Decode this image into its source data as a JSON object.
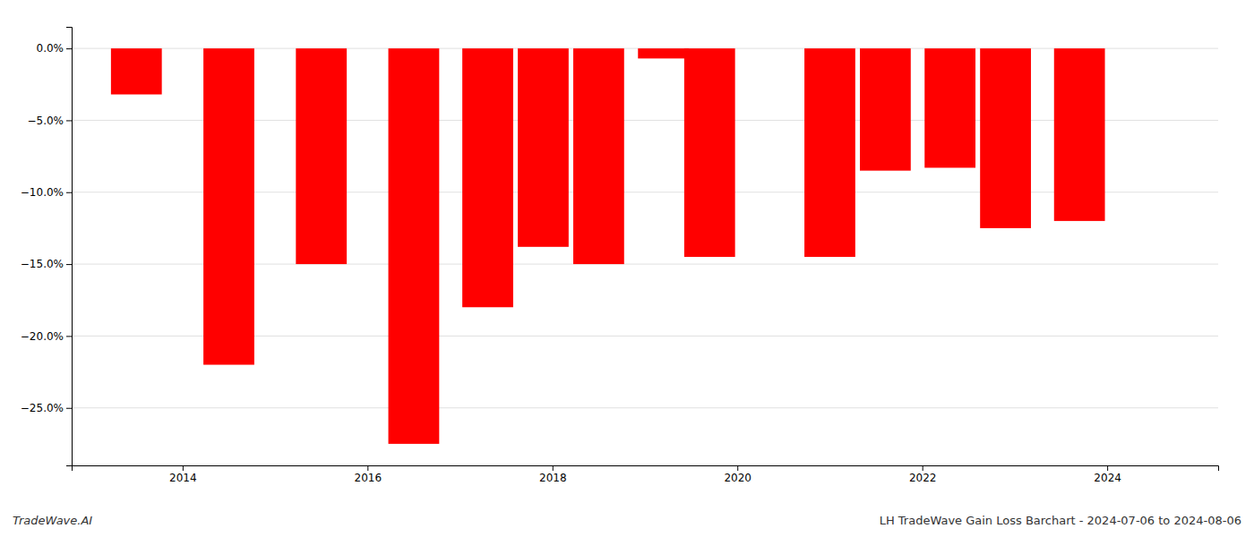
{
  "chart_data": {
    "type": "bar",
    "x": [
      2013.5,
      2014.5,
      2015.5,
      2016.5,
      2017.3,
      2017.9,
      2018.5,
      2019.2,
      2019.7,
      2021.0,
      2021.6,
      2022.3,
      2022.9,
      2023.7
    ],
    "values": [
      -3.2,
      -22.0,
      -15.0,
      -27.5,
      -18.0,
      -13.8,
      -15.0,
      -0.7,
      -14.5,
      -14.5,
      -8.5,
      -8.3,
      -12.5,
      -12.0
    ],
    "color": "#ff0000",
    "xlim": [
      2012.8,
      2025.2
    ],
    "ylim": [
      -29,
      1.5
    ],
    "xticks": [
      2014,
      2016,
      2018,
      2020,
      2022,
      2024
    ],
    "yticks": [
      {
        "value": 0.0,
        "label": "0.0%"
      },
      {
        "value": -5.0,
        "label": "−5.0%"
      },
      {
        "value": -10.0,
        "label": "−10.0%"
      },
      {
        "value": -15.0,
        "label": "−15.0%"
      },
      {
        "value": -20.0,
        "label": "−20.0%"
      },
      {
        "value": -25.0,
        "label": "−25.0%"
      }
    ],
    "grid": true,
    "annotations": [
      "TradeWave.AI",
      "LH TradeWave Gain Loss Barchart - 2024-07-06 to 2024-08-06"
    ]
  }
}
